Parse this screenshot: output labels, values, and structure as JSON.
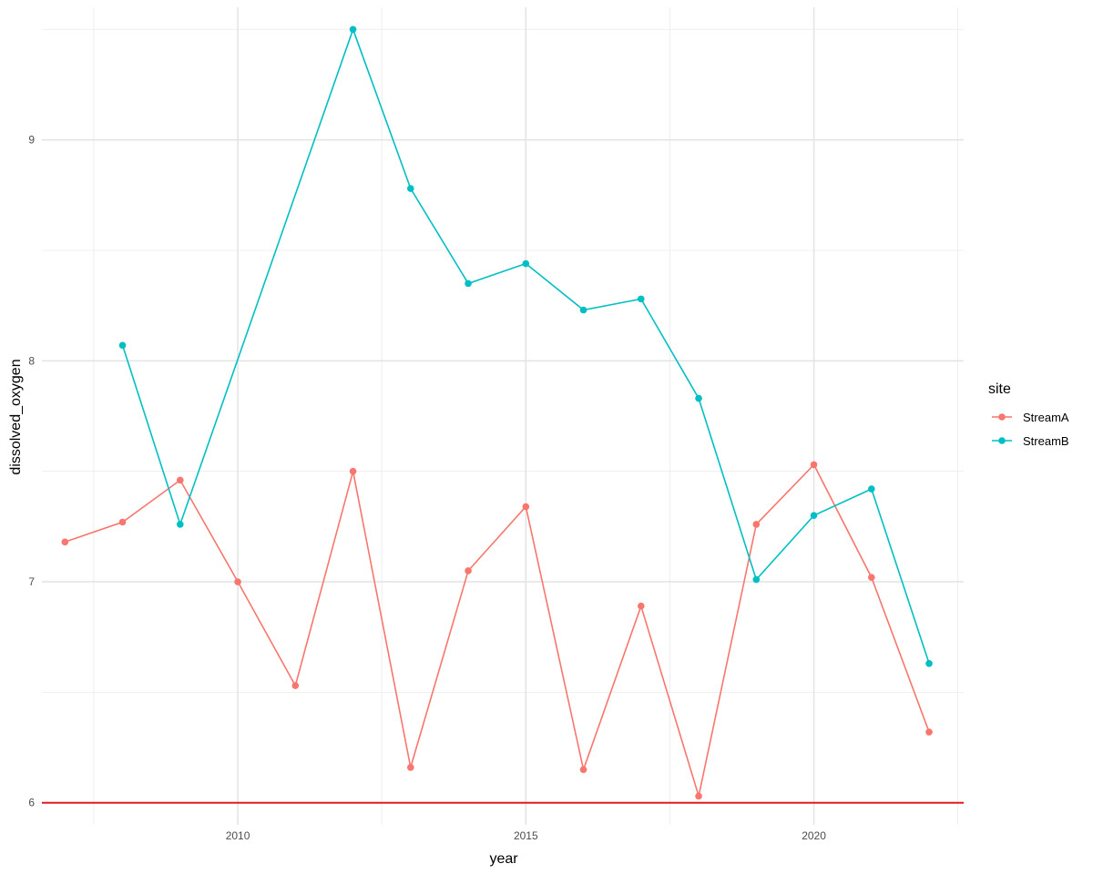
{
  "chart_data": {
    "type": "line",
    "xlabel": "year",
    "ylabel": "dissolved_oxygen",
    "xlim": [
      2006.6,
      2022.6
    ],
    "ylim": [
      5.9,
      9.6
    ],
    "x_ticks": [
      2010,
      2015,
      2020
    ],
    "y_ticks": [
      6,
      7,
      8,
      9
    ],
    "x_tick_labels": [
      "2010",
      "2015",
      "2020"
    ],
    "y_tick_labels": [
      "6",
      "7",
      "8",
      "9"
    ],
    "grid": true,
    "legend": {
      "title": "site",
      "position": "right"
    },
    "reference_line": {
      "y": 6,
      "color": "#e41a1c"
    },
    "series": [
      {
        "name": "StreamA",
        "color": "#F8766D",
        "x": [
          2007,
          2008,
          2009,
          2010,
          2011,
          2012,
          2013,
          2014,
          2015,
          2016,
          2017,
          2018,
          2019,
          2020,
          2021,
          2022
        ],
        "y": [
          7.18,
          7.27,
          7.46,
          7.0,
          6.53,
          7.5,
          6.16,
          7.05,
          7.34,
          6.15,
          6.89,
          6.03,
          7.26,
          7.53,
          7.02,
          6.32
        ]
      },
      {
        "name": "StreamB",
        "color": "#00BFC4",
        "x": [
          2008,
          2009,
          2012,
          2013,
          2014,
          2015,
          2016,
          2017,
          2018,
          2019,
          2020,
          2021,
          2022
        ],
        "y": [
          8.07,
          7.26,
          9.5,
          8.78,
          8.35,
          8.44,
          8.23,
          8.28,
          7.83,
          7.01,
          7.3,
          7.42,
          6.63
        ]
      }
    ]
  }
}
